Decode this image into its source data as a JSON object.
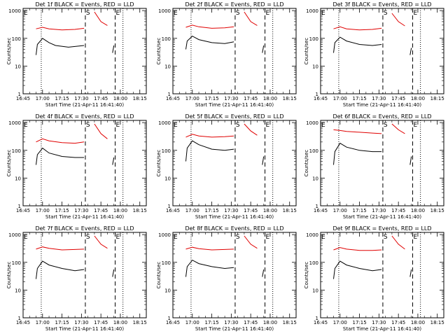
{
  "colors": {
    "events": "#000000",
    "lld": "#e00000",
    "axes": "#000000"
  },
  "shared": {
    "ylabel": "Counts/sec",
    "xlabel": "Start Time (21-Apr-11 16:41:40)",
    "x_tick_labels": [
      "16:45",
      "17:00",
      "17:15",
      "17:30",
      "17:45",
      "18:00",
      "18:15"
    ],
    "y_tick_labels": [
      "1",
      "10",
      "100",
      "1000"
    ],
    "segment_markers": [
      "E",
      "S",
      "E"
    ],
    "y_scale": "log",
    "ylim": [
      1,
      1200
    ],
    "xlim_minutes_after_1645": [
      0,
      95
    ]
  },
  "chart_data": [
    {
      "type": "line",
      "title": "Det 1f BLACK = Events, RED = LLD",
      "dotted_lines": [
        "16:59",
        "18:02"
      ],
      "dashed_lines": [
        "17:33",
        "17:56"
      ],
      "series": [
        {
          "color": "red",
          "points": [
            [
              "16:55",
              220
            ],
            [
              "17:00",
              250
            ],
            [
              "17:05",
              220
            ],
            [
              "17:15",
              200
            ],
            [
              "17:25",
              210
            ],
            [
              "17:32",
              230
            ]
          ]
        },
        {
          "color": "black",
          "points": [
            [
              "16:55",
              25
            ],
            [
              "16:56",
              60
            ],
            [
              "17:00",
              100
            ],
            [
              "17:05",
              70
            ],
            [
              "17:10",
              55
            ],
            [
              "17:20",
              48
            ],
            [
              "17:32",
              55
            ]
          ]
        },
        {
          "color": "red",
          "points": [
            [
              "17:40",
              900
            ],
            [
              "17:45",
              400
            ],
            [
              "17:50",
              290
            ]
          ]
        },
        {
          "color": "black",
          "points": [
            [
              "17:54",
              30
            ],
            [
              "17:55",
              55
            ]
          ]
        }
      ]
    },
    {
      "type": "line",
      "title": "Det 2f BLACK = Events, RED = LLD",
      "dotted_lines": [
        "16:59",
        "18:02"
      ],
      "dashed_lines": [
        "17:33",
        "17:56"
      ],
      "series": [
        {
          "color": "red",
          "points": [
            [
              "16:55",
              250
            ],
            [
              "17:00",
              300
            ],
            [
              "17:05",
              260
            ],
            [
              "17:15",
              230
            ],
            [
              "17:25",
              240
            ],
            [
              "17:32",
              260
            ]
          ]
        },
        {
          "color": "black",
          "points": [
            [
              "16:55",
              40
            ],
            [
              "16:56",
              80
            ],
            [
              "17:00",
              120
            ],
            [
              "17:05",
              90
            ],
            [
              "17:15",
              70
            ],
            [
              "17:25",
              65
            ],
            [
              "17:32",
              75
            ]
          ]
        },
        {
          "color": "red",
          "points": [
            [
              "17:40",
              900
            ],
            [
              "17:45",
              400
            ],
            [
              "17:50",
              290
            ]
          ]
        },
        {
          "color": "black",
          "points": [
            [
              "17:54",
              30
            ],
            [
              "17:55",
              55
            ]
          ]
        }
      ]
    },
    {
      "type": "line",
      "title": "Det 3f BLACK = Events, RED = LLD",
      "dotted_lines": [
        "16:59",
        "18:02"
      ],
      "dashed_lines": [
        "17:33",
        "17:56"
      ],
      "series": [
        {
          "color": "red",
          "points": [
            [
              "16:55",
              220
            ],
            [
              "17:00",
              260
            ],
            [
              "17:05",
              220
            ],
            [
              "17:15",
              200
            ],
            [
              "17:25",
              210
            ],
            [
              "17:32",
              230
            ]
          ]
        },
        {
          "color": "black",
          "points": [
            [
              "16:55",
              30
            ],
            [
              "16:56",
              70
            ],
            [
              "17:00",
              110
            ],
            [
              "17:05",
              80
            ],
            [
              "17:15",
              60
            ],
            [
              "17:25",
              55
            ],
            [
              "17:32",
              60
            ]
          ]
        },
        {
          "color": "red",
          "points": [
            [
              "17:40",
              800
            ],
            [
              "17:45",
              400
            ],
            [
              "17:50",
              280
            ]
          ]
        },
        {
          "color": "black",
          "points": [
            [
              "17:54",
              25
            ],
            [
              "17:55",
              45
            ]
          ]
        }
      ]
    },
    {
      "type": "line",
      "title": "Det 4f BLACK = Events, RED = LLD",
      "dotted_lines": [
        "16:59",
        "18:02"
      ],
      "dashed_lines": [
        "17:33",
        "17:56"
      ],
      "series": [
        {
          "color": "red",
          "points": [
            [
              "16:55",
              200
            ],
            [
              "17:00",
              260
            ],
            [
              "17:05",
              220
            ],
            [
              "17:15",
              190
            ],
            [
              "17:25",
              180
            ],
            [
              "17:32",
              200
            ]
          ]
        },
        {
          "color": "black",
          "points": [
            [
              "16:55",
              30
            ],
            [
              "16:56",
              70
            ],
            [
              "17:00",
              120
            ],
            [
              "17:05",
              80
            ],
            [
              "17:15",
              60
            ],
            [
              "17:25",
              55
            ],
            [
              "17:32",
              55
            ]
          ]
        },
        {
          "color": "red",
          "points": [
            [
              "17:40",
              900
            ],
            [
              "17:45",
              400
            ],
            [
              "17:50",
              260
            ]
          ]
        },
        {
          "color": "black",
          "points": [
            [
              "17:54",
              30
            ],
            [
              "17:55",
              55
            ]
          ]
        }
      ]
    },
    {
      "type": "line",
      "title": "Det 5f BLACK = Events, RED = LLD",
      "dotted_lines": [
        "16:59",
        "18:02"
      ],
      "dashed_lines": [
        "17:33",
        "17:56"
      ],
      "series": [
        {
          "color": "red",
          "points": [
            [
              "16:55",
              300
            ],
            [
              "17:00",
              380
            ],
            [
              "17:05",
              330
            ],
            [
              "17:15",
              300
            ],
            [
              "17:25",
              310
            ],
            [
              "17:32",
              330
            ]
          ]
        },
        {
          "color": "black",
          "points": [
            [
              "16:55",
              40
            ],
            [
              "16:56",
              120
            ],
            [
              "17:00",
              220
            ],
            [
              "17:05",
              160
            ],
            [
              "17:15",
              110
            ],
            [
              "17:25",
              100
            ],
            [
              "17:32",
              110
            ]
          ]
        },
        {
          "color": "red",
          "points": [
            [
              "17:40",
              900
            ],
            [
              "17:45",
              500
            ],
            [
              "17:50",
              350
            ]
          ]
        },
        {
          "color": "black",
          "points": [
            [
              "17:54",
              30
            ],
            [
              "17:55",
              60
            ]
          ]
        }
      ]
    },
    {
      "type": "line",
      "title": "Det 6f BLACK = Events, RED = LLD",
      "dotted_lines": [
        "16:59",
        "18:02"
      ],
      "dashed_lines": [
        "17:33",
        "17:56"
      ],
      "series": [
        {
          "color": "red",
          "points": [
            [
              "16:55",
              550
            ],
            [
              "17:00",
              520
            ],
            [
              "17:05",
              480
            ],
            [
              "17:15",
              450
            ],
            [
              "17:25",
              420
            ],
            [
              "17:32",
              400
            ]
          ]
        },
        {
          "color": "black",
          "points": [
            [
              "16:55",
              30
            ],
            [
              "16:56",
              90
            ],
            [
              "17:00",
              180
            ],
            [
              "17:05",
              130
            ],
            [
              "17:15",
              100
            ],
            [
              "17:25",
              90
            ],
            [
              "17:32",
              90
            ]
          ]
        },
        {
          "color": "red",
          "points": [
            [
              "17:40",
              900
            ],
            [
              "17:45",
              550
            ],
            [
              "17:50",
              400
            ]
          ]
        },
        {
          "color": "black",
          "points": [
            [
              "17:54",
              30
            ],
            [
              "17:55",
              60
            ]
          ]
        }
      ]
    },
    {
      "type": "line",
      "title": "Det 7f BLACK = Events, RED = LLD",
      "dotted_lines": [
        "16:59",
        "18:02"
      ],
      "dashed_lines": [
        "17:33",
        "17:56"
      ],
      "series": [
        {
          "color": "red",
          "points": [
            [
              "16:55",
              300
            ],
            [
              "17:00",
              360
            ],
            [
              "17:05",
              320
            ],
            [
              "17:15",
              280
            ],
            [
              "17:25",
              290
            ],
            [
              "17:32",
              300
            ]
          ]
        },
        {
          "color": "black",
          "points": [
            [
              "16:55",
              25
            ],
            [
              "16:56",
              60
            ],
            [
              "17:00",
              110
            ],
            [
              "17:05",
              80
            ],
            [
              "17:15",
              60
            ],
            [
              "17:25",
              50
            ],
            [
              "17:32",
              55
            ]
          ]
        },
        {
          "color": "red",
          "points": [
            [
              "17:40",
              900
            ],
            [
              "17:45",
              450
            ],
            [
              "17:50",
              320
            ]
          ]
        },
        {
          "color": "black",
          "points": [
            [
              "17:54",
              30
            ],
            [
              "17:55",
              55
            ]
          ]
        }
      ]
    },
    {
      "type": "line",
      "title": "Det 8f BLACK = Events, RED = LLD",
      "dotted_lines": [
        "16:59",
        "18:02"
      ],
      "dashed_lines": [
        "17:33",
        "17:56"
      ],
      "series": [
        {
          "color": "red",
          "points": [
            [
              "16:55",
              300
            ],
            [
              "17:00",
              350
            ],
            [
              "17:05",
              310
            ],
            [
              "17:15",
              280
            ],
            [
              "17:25",
              290
            ],
            [
              "17:32",
              300
            ]
          ]
        },
        {
          "color": "black",
          "points": [
            [
              "16:55",
              30
            ],
            [
              "16:56",
              70
            ],
            [
              "17:00",
              120
            ],
            [
              "17:05",
              90
            ],
            [
              "17:15",
              70
            ],
            [
              "17:25",
              60
            ],
            [
              "17:32",
              65
            ]
          ]
        },
        {
          "color": "red",
          "points": [
            [
              "17:40",
              900
            ],
            [
              "17:45",
              450
            ],
            [
              "17:50",
              320
            ]
          ]
        },
        {
          "color": "black",
          "points": [
            [
              "17:54",
              30
            ],
            [
              "17:55",
              55
            ]
          ]
        }
      ]
    },
    {
      "type": "line",
      "title": "Det 9f BLACK = Events, RED = LLD",
      "dotted_lines": [
        "16:59",
        "18:02"
      ],
      "dashed_lines": [
        "17:33",
        "17:56"
      ],
      "series": [
        {
          "color": "red",
          "points": [
            [
              "16:55",
              280
            ],
            [
              "17:00",
              340
            ],
            [
              "17:05",
              300
            ],
            [
              "17:15",
              270
            ],
            [
              "17:25",
              270
            ],
            [
              "17:32",
              280
            ]
          ]
        },
        {
          "color": "black",
          "points": [
            [
              "16:55",
              25
            ],
            [
              "16:56",
              60
            ],
            [
              "17:00",
              110
            ],
            [
              "17:05",
              80
            ],
            [
              "17:15",
              60
            ],
            [
              "17:25",
              50
            ],
            [
              "17:32",
              55
            ]
          ]
        },
        {
          "color": "red",
          "points": [
            [
              "17:40",
              900
            ],
            [
              "17:45",
              450
            ],
            [
              "17:50",
              300
            ]
          ]
        },
        {
          "color": "black",
          "points": [
            [
              "17:54",
              30
            ],
            [
              "17:55",
              55
            ]
          ]
        }
      ]
    }
  ]
}
